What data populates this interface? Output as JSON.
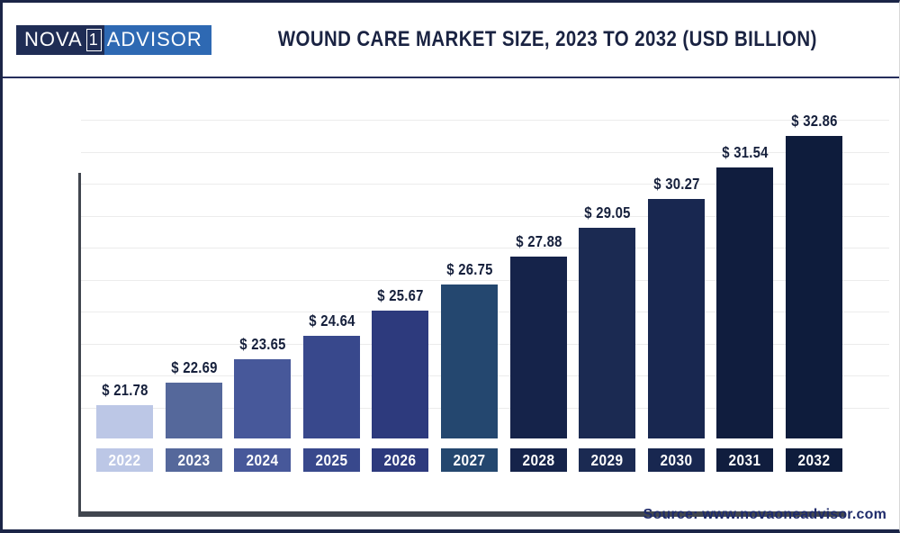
{
  "logo": {
    "part1": "NOVA",
    "boxed_char": "1",
    "part2": "ADVISOR"
  },
  "header": {
    "title": "WOUND CARE MARKET SIZE, 2023 TO 2032 (USD BILLION)"
  },
  "footer": {
    "source": "Source: www.novaoneadvisor.com"
  },
  "chart_data": {
    "type": "bar",
    "title": "WOUND CARE MARKET SIZE, 2023 TO 2032 (USD BILLION)",
    "unit": "USD Billion",
    "categories": [
      "2022",
      "2023",
      "2024",
      "2025",
      "2026",
      "2027",
      "2028",
      "2029",
      "2030",
      "2031",
      "2032"
    ],
    "values": [
      21.78,
      22.69,
      23.65,
      24.64,
      25.67,
      26.75,
      27.88,
      29.05,
      30.27,
      31.54,
      32.86
    ],
    "value_labels": [
      "$ 21.78",
      "$ 22.69",
      "$ 23.65",
      "$ 24.64",
      "$ 25.67",
      "$ 26.75",
      "$ 27.88",
      "$ 29.05",
      "$ 30.27",
      "$ 31.54",
      "$ 32.86"
    ],
    "bar_colors": [
      "#bcc7e6",
      "#55689b",
      "#47589a",
      "#38488c",
      "#2d3a7d",
      "#24476f",
      "#15234a",
      "#1b2a52",
      "#182750",
      "#101d3e",
      "#0e1c3c"
    ],
    "ylim": [
      20.4,
      34.4
    ],
    "xlabel": "",
    "ylabel": "",
    "grid": "horizontal-light",
    "gridline_color": "#ececec",
    "axis_color": "#41464f",
    "legend": "none",
    "value_label_color": "#16203c",
    "year_label_text_color": "#ffffff",
    "source": "Source: www.novaoneadvisor.com"
  }
}
